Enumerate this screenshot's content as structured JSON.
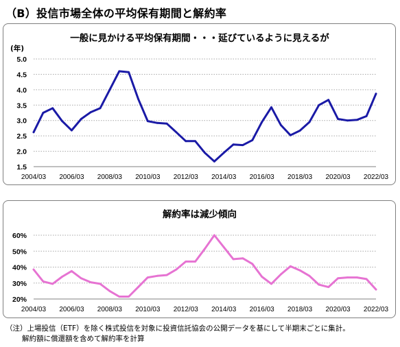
{
  "page_title": "（B）投信市場全体の平均保有期間と解約率",
  "notes": [
    "（注）上場投信（ETF）を除く株式投信を対象に投資信託協会の公開データを基にして半期末ごとに集計。",
    "解約額に償還額を含めて解約率を計算"
  ],
  "chart_data": [
    {
      "type": "line",
      "title": "一般に見かける平均保有期間・・・延びているように見えるが",
      "ylabel": "(年)",
      "ylim": [
        1.5,
        5.0
      ],
      "yticks": [
        "5.0",
        "4.5",
        "4.0",
        "3.5",
        "3.0",
        "2.5",
        "2.0",
        "1.5"
      ],
      "grid": true,
      "xtick_labels": [
        "2004/03",
        "2006/03",
        "2008/03",
        "2010/03",
        "2012/03",
        "2014/03",
        "2016/03",
        "2018/03",
        "2020/03",
        "2022/03"
      ],
      "x": [
        "2004/03",
        "2004/09",
        "2005/03",
        "2005/09",
        "2006/03",
        "2006/09",
        "2007/03",
        "2007/09",
        "2008/03",
        "2008/09",
        "2009/03",
        "2009/09",
        "2010/03",
        "2010/09",
        "2011/03",
        "2011/09",
        "2012/03",
        "2012/09",
        "2013/03",
        "2013/09",
        "2014/03",
        "2014/09",
        "2015/03",
        "2015/09",
        "2016/03",
        "2016/09",
        "2017/03",
        "2017/09",
        "2018/03",
        "2018/09",
        "2019/03",
        "2019/09",
        "2020/03",
        "2020/09",
        "2021/03",
        "2021/09",
        "2022/03"
      ],
      "series": [
        {
          "color": "#1a1aa6",
          "values": [
            2.62,
            3.25,
            3.4,
            2.98,
            2.68,
            3.05,
            3.27,
            3.4,
            4.0,
            4.6,
            4.57,
            3.7,
            2.98,
            2.92,
            2.9,
            2.62,
            2.33,
            2.33,
            1.95,
            1.67,
            1.95,
            2.22,
            2.2,
            2.36,
            2.95,
            3.43,
            2.85,
            2.52,
            2.67,
            2.95,
            3.5,
            3.67,
            3.05,
            3.0,
            3.02,
            3.14,
            3.87
          ]
        }
      ]
    },
    {
      "type": "line",
      "title": "解約率は減少傾向",
      "ylim": [
        20,
        60
      ],
      "yticks": [
        "60%",
        "50%",
        "40%",
        "30%",
        "20%"
      ],
      "grid": true,
      "xtick_labels": [
        "2004/03",
        "2006/03",
        "2008/03",
        "2010/03",
        "2012/03",
        "2014/03",
        "2016/03",
        "2018/03",
        "2020/03",
        "2022/03"
      ],
      "x": [
        "2004/03",
        "2004/09",
        "2005/03",
        "2005/09",
        "2006/03",
        "2006/09",
        "2007/03",
        "2007/09",
        "2008/03",
        "2008/09",
        "2009/03",
        "2009/09",
        "2010/03",
        "2010/09",
        "2011/03",
        "2011/09",
        "2012/03",
        "2012/09",
        "2013/03",
        "2013/09",
        "2014/03",
        "2014/09",
        "2015/03",
        "2015/09",
        "2016/03",
        "2016/09",
        "2017/03",
        "2017/09",
        "2018/03",
        "2018/09",
        "2019/03",
        "2019/09",
        "2020/03",
        "2020/09",
        "2021/03",
        "2021/09",
        "2022/03"
      ],
      "series": [
        {
          "color": "#e673d2",
          "values": [
            38.5,
            31.0,
            29.5,
            34.0,
            37.5,
            33.0,
            30.5,
            29.5,
            25.0,
            21.5,
            21.5,
            27.5,
            33.5,
            34.5,
            35.0,
            38.5,
            43.5,
            43.5,
            51.5,
            60.0,
            52.5,
            45.0,
            45.5,
            42.0,
            34.0,
            29.5,
            35.5,
            40.5,
            38.0,
            34.5,
            29.0,
            27.5,
            33.0,
            33.5,
            33.5,
            32.5,
            26.0
          ]
        }
      ]
    }
  ]
}
